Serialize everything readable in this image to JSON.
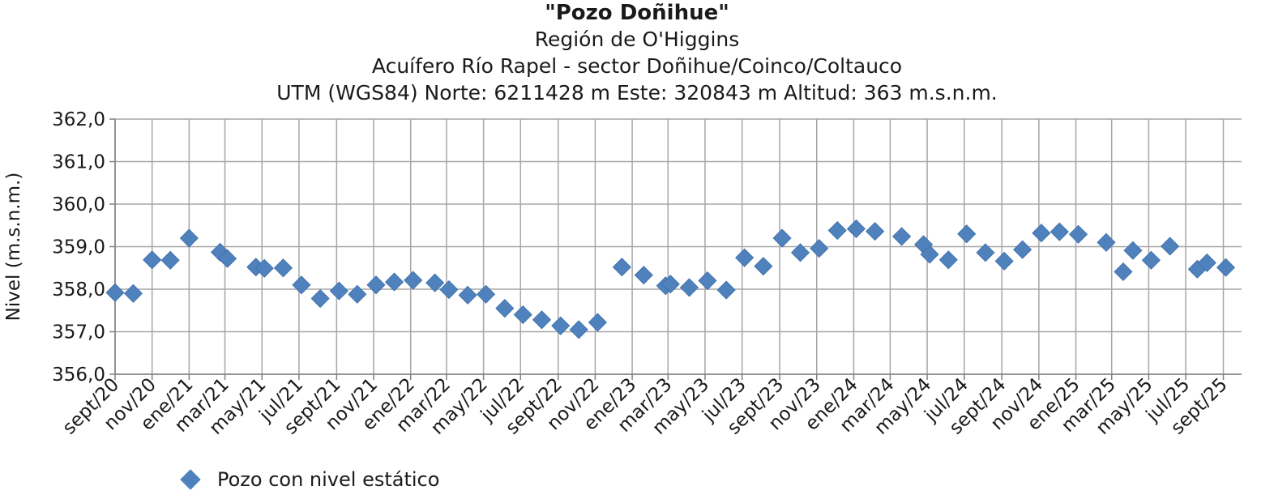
{
  "chart_data": {
    "type": "scatter",
    "title": "\"Pozo Doñihue\"",
    "subtitles": [
      "Región de O'Higgins",
      "Acuífero Río Rapel - sector Doñihue/Coinco/Coltauco",
      "UTM (WGS84) Norte: 6211428 m  Este: 320843 m   Altitud: 363 m.s.n.m."
    ],
    "ylabel": "Nivel (m.s.n.m.)",
    "xlabel": "",
    "ylim": [
      356.0,
      362.0
    ],
    "y_ticks": [
      "356,0",
      "357,0",
      "358,0",
      "359,0",
      "360,0",
      "361,0",
      "362,0"
    ],
    "x_range": [
      "2020-09-01",
      "2025-10-01"
    ],
    "x_ticks": [
      {
        "date": "2020-09-01",
        "label": "sept/20"
      },
      {
        "date": "2020-11-01",
        "label": "nov/20"
      },
      {
        "date": "2021-01-01",
        "label": "ene/21"
      },
      {
        "date": "2021-03-01",
        "label": "mar/21"
      },
      {
        "date": "2021-05-01",
        "label": "may/21"
      },
      {
        "date": "2021-07-01",
        "label": "jul/21"
      },
      {
        "date": "2021-09-01",
        "label": "sept/21"
      },
      {
        "date": "2021-11-01",
        "label": "nov/21"
      },
      {
        "date": "2022-01-01",
        "label": "ene/22"
      },
      {
        "date": "2022-03-01",
        "label": "mar/22"
      },
      {
        "date": "2022-05-01",
        "label": "may/22"
      },
      {
        "date": "2022-07-01",
        "label": "jul/22"
      },
      {
        "date": "2022-09-01",
        "label": "sept/22"
      },
      {
        "date": "2022-11-01",
        "label": "nov/22"
      },
      {
        "date": "2023-01-01",
        "label": "ene/23"
      },
      {
        "date": "2023-03-01",
        "label": "mar/23"
      },
      {
        "date": "2023-05-01",
        "label": "may/23"
      },
      {
        "date": "2023-07-01",
        "label": "jul/23"
      },
      {
        "date": "2023-09-01",
        "label": "sept/23"
      },
      {
        "date": "2023-11-01",
        "label": "nov/23"
      },
      {
        "date": "2024-01-01",
        "label": "ene/24"
      },
      {
        "date": "2024-03-01",
        "label": "mar/24"
      },
      {
        "date": "2024-05-01",
        "label": "may/24"
      },
      {
        "date": "2024-07-01",
        "label": "jul/24"
      },
      {
        "date": "2024-09-01",
        "label": "sept/24"
      },
      {
        "date": "2024-11-01",
        "label": "nov/24"
      },
      {
        "date": "2025-01-01",
        "label": "ene/25"
      },
      {
        "date": "2025-03-01",
        "label": "mar/25"
      },
      {
        "date": "2025-05-01",
        "label": "may/25"
      },
      {
        "date": "2025-07-01",
        "label": "jul/25"
      },
      {
        "date": "2025-09-01",
        "label": "sept/25"
      }
    ],
    "grid": true,
    "legend_position": "bottom-left",
    "series": [
      {
        "name": "Pozo con nivel estático",
        "color": "#4f81bd",
        "marker": "diamond",
        "points": [
          {
            "x": "2020-09-01",
            "y": 357.92
          },
          {
            "x": "2020-10-01",
            "y": 357.9
          },
          {
            "x": "2020-11-01",
            "y": 358.69
          },
          {
            "x": "2020-12-01",
            "y": 358.68
          },
          {
            "x": "2021-01-01",
            "y": 359.2
          },
          {
            "x": "2021-02-21",
            "y": 358.87
          },
          {
            "x": "2021-03-05",
            "y": 358.72
          },
          {
            "x": "2021-04-21",
            "y": 358.52
          },
          {
            "x": "2021-05-05",
            "y": 358.49
          },
          {
            "x": "2021-06-05",
            "y": 358.5
          },
          {
            "x": "2021-07-05",
            "y": 358.1
          },
          {
            "x": "2021-08-05",
            "y": 357.78
          },
          {
            "x": "2021-09-05",
            "y": 357.96
          },
          {
            "x": "2021-10-05",
            "y": 357.88
          },
          {
            "x": "2021-11-05",
            "y": 358.1
          },
          {
            "x": "2021-12-05",
            "y": 358.17
          },
          {
            "x": "2022-01-05",
            "y": 358.21
          },
          {
            "x": "2022-02-10",
            "y": 358.15
          },
          {
            "x": "2022-03-05",
            "y": 357.99
          },
          {
            "x": "2022-04-05",
            "y": 357.86
          },
          {
            "x": "2022-05-05",
            "y": 357.88
          },
          {
            "x": "2022-06-05",
            "y": 357.55
          },
          {
            "x": "2022-07-05",
            "y": 357.4
          },
          {
            "x": "2022-08-05",
            "y": 357.28
          },
          {
            "x": "2022-09-05",
            "y": 357.14
          },
          {
            "x": "2022-10-05",
            "y": 357.05
          },
          {
            "x": "2022-11-05",
            "y": 357.22
          },
          {
            "x": "2022-12-15",
            "y": 358.52
          },
          {
            "x": "2023-01-20",
            "y": 358.33
          },
          {
            "x": "2023-02-25",
            "y": 358.08
          },
          {
            "x": "2023-03-05",
            "y": 358.12
          },
          {
            "x": "2023-04-05",
            "y": 358.04
          },
          {
            "x": "2023-05-05",
            "y": 358.2
          },
          {
            "x": "2023-06-05",
            "y": 357.98
          },
          {
            "x": "2023-07-05",
            "y": 358.74
          },
          {
            "x": "2023-08-05",
            "y": 358.54
          },
          {
            "x": "2023-09-05",
            "y": 359.2
          },
          {
            "x": "2023-10-05",
            "y": 358.86
          },
          {
            "x": "2023-11-05",
            "y": 358.96
          },
          {
            "x": "2023-12-05",
            "y": 359.38
          },
          {
            "x": "2024-01-05",
            "y": 359.42
          },
          {
            "x": "2024-02-05",
            "y": 359.36
          },
          {
            "x": "2024-03-20",
            "y": 359.24
          },
          {
            "x": "2024-04-25",
            "y": 359.05
          },
          {
            "x": "2024-05-05",
            "y": 358.82
          },
          {
            "x": "2024-06-05",
            "y": 358.69
          },
          {
            "x": "2024-07-05",
            "y": 359.3
          },
          {
            "x": "2024-08-05",
            "y": 358.86
          },
          {
            "x": "2024-09-05",
            "y": 358.66
          },
          {
            "x": "2024-10-05",
            "y": 358.93
          },
          {
            "x": "2024-11-05",
            "y": 359.32
          },
          {
            "x": "2024-12-05",
            "y": 359.35
          },
          {
            "x": "2025-01-05",
            "y": 359.29
          },
          {
            "x": "2025-02-20",
            "y": 359.1
          },
          {
            "x": "2025-03-20",
            "y": 358.41
          },
          {
            "x": "2025-04-05",
            "y": 358.91
          },
          {
            "x": "2025-05-05",
            "y": 358.68
          },
          {
            "x": "2025-06-05",
            "y": 359.01
          },
          {
            "x": "2025-07-20",
            "y": 358.47
          },
          {
            "x": "2025-08-05",
            "y": 358.62
          },
          {
            "x": "2025-09-05",
            "y": 358.51
          }
        ]
      }
    ]
  }
}
